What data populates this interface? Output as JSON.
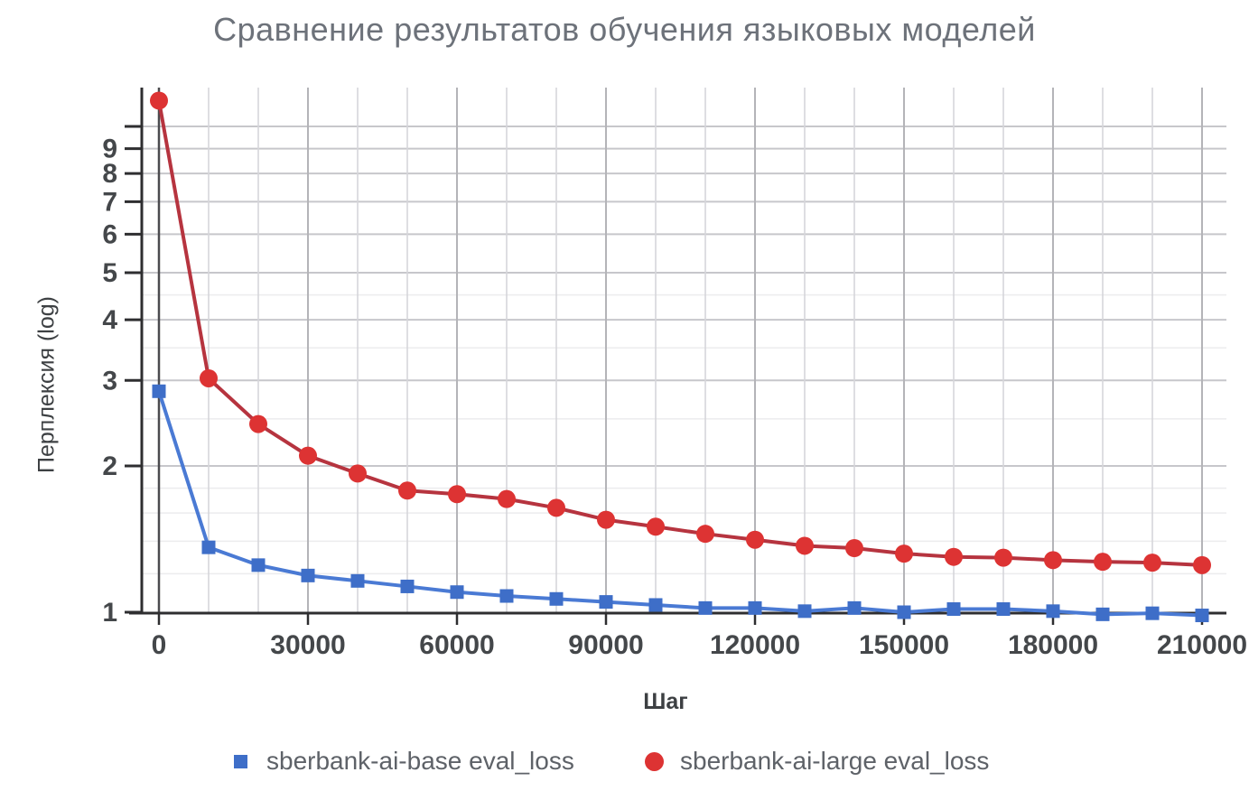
{
  "chart_data": {
    "type": "line",
    "title": "Сравнение результатов обучения языковых моделей",
    "xlabel": "Шаг",
    "ylabel": "Перплексия (log)",
    "y_scale": "log",
    "ylim": [
      1,
      10
    ],
    "grid": true,
    "legend_position": "bottom",
    "x_tick_labels": [
      "0",
      "30000",
      "60000",
      "90000",
      "120000",
      "150000",
      "180000",
      "210000"
    ],
    "x_tick_values": [
      0,
      30000,
      60000,
      90000,
      120000,
      150000,
      180000,
      210000
    ],
    "x_gridline_step": 10000,
    "y_tick_labels": [
      "1",
      "2",
      "3",
      "4",
      "5",
      "6",
      "7",
      "8",
      "9"
    ],
    "y_top_unlabeled_tick": 10,
    "x": [
      0,
      10000,
      20000,
      30000,
      40000,
      50000,
      60000,
      70000,
      80000,
      90000,
      100000,
      110000,
      120000,
      130000,
      140000,
      150000,
      160000,
      170000,
      180000,
      190000,
      200000,
      210000
    ],
    "series": [
      {
        "name": "sberbank-ai-base eval_loss",
        "marker": "square",
        "marker_color": "#3e6ec8",
        "line_color": "#4a7ad4",
        "values": [
          2.85,
          1.36,
          1.25,
          1.19,
          1.16,
          1.13,
          1.1,
          1.08,
          1.065,
          1.05,
          1.035,
          1.02,
          1.02,
          1.005,
          1.02,
          1.0,
          1.015,
          1.015,
          1.005,
          0.99,
          0.995,
          0.985
        ]
      },
      {
        "name": "sberbank-ai-large eval_loss",
        "marker": "circle",
        "marker_color": "#dd3333",
        "line_color": "#b6343f",
        "values": [
          11.3,
          3.03,
          2.44,
          2.1,
          1.93,
          1.78,
          1.75,
          1.71,
          1.64,
          1.55,
          1.5,
          1.45,
          1.41,
          1.37,
          1.355,
          1.32,
          1.3,
          1.295,
          1.28,
          1.27,
          1.265,
          1.25
        ]
      }
    ],
    "title_color": "#6d727a",
    "tick_label_color": "#44474a"
  }
}
